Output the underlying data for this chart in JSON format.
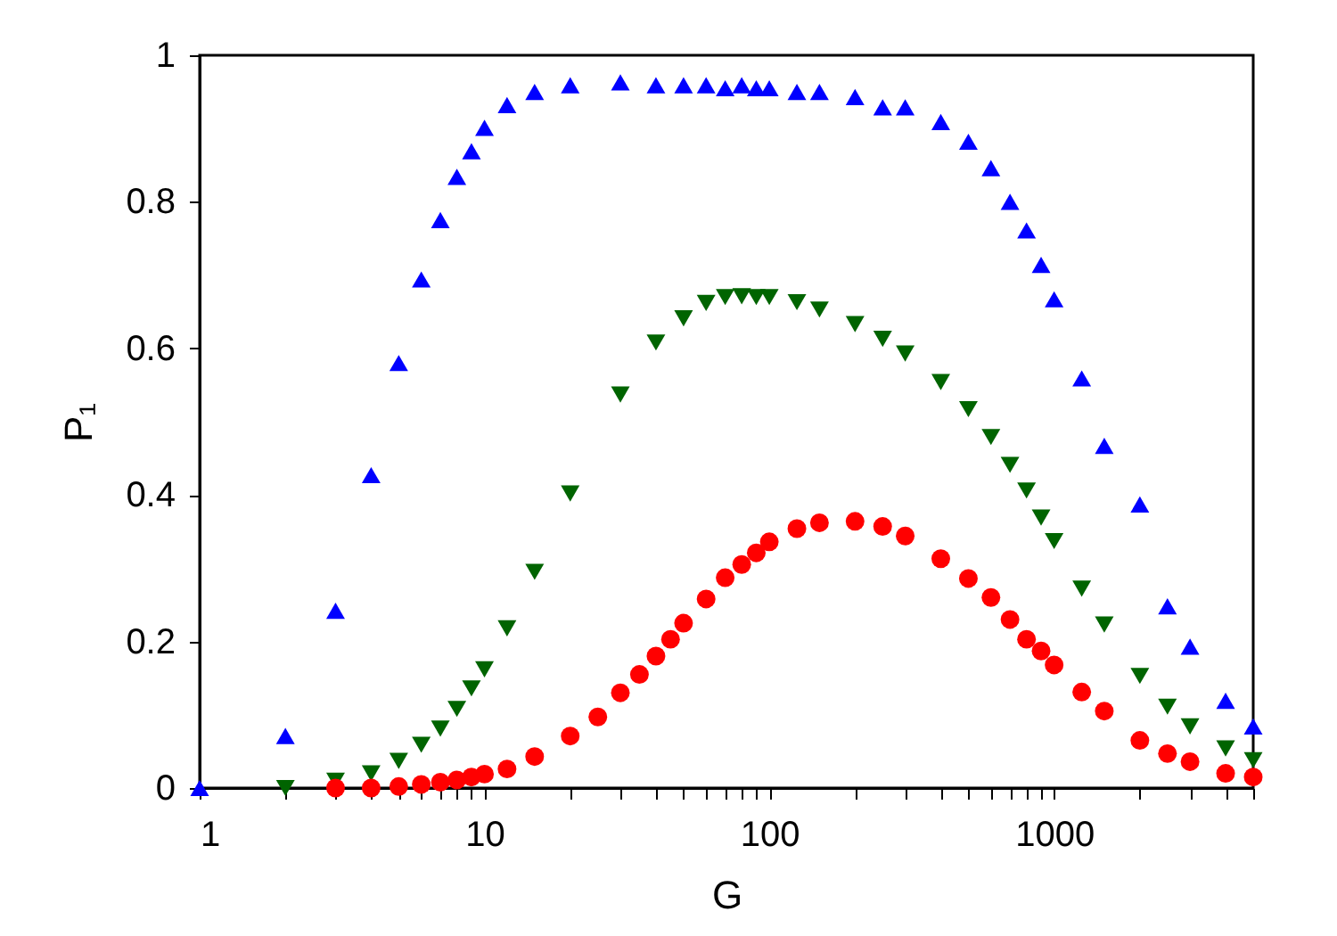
{
  "chart_data": {
    "type": "scatter",
    "xlabel": "G",
    "ylabel": "P₁",
    "log": "x",
    "grid": false,
    "xlim": [
      1,
      5000
    ],
    "ylim": [
      0,
      1
    ],
    "xticks": [
      1,
      {
        "value": 2,
        "label": null
      },
      {
        "value": 3,
        "label": null
      },
      {
        "value": 4,
        "label": null
      },
      {
        "value": 5,
        "label": null
      },
      {
        "value": 6,
        "label": null
      },
      {
        "value": 7,
        "label": null
      },
      {
        "value": 8,
        "label": null
      },
      {
        "value": 9,
        "label": null
      },
      10,
      {
        "value": 20,
        "label": null
      },
      {
        "value": 30,
        "label": null
      },
      {
        "value": 40,
        "label": null
      },
      {
        "value": 50,
        "label": null
      },
      {
        "value": 60,
        "label": null
      },
      {
        "value": 70,
        "label": null
      },
      {
        "value": 80,
        "label": null
      },
      {
        "value": 90,
        "label": null
      },
      100,
      {
        "value": 200,
        "label": null
      },
      {
        "value": 300,
        "label": null
      },
      {
        "value": 400,
        "label": null
      },
      {
        "value": 500,
        "label": null
      },
      {
        "value": 600,
        "label": null
      },
      {
        "value": 700,
        "label": null
      },
      {
        "value": 800,
        "label": null
      },
      {
        "value": 900,
        "label": null
      },
      1000,
      {
        "value": 2000,
        "label": null
      },
      {
        "value": 3000,
        "label": null
      },
      {
        "value": 4000,
        "label": null
      },
      {
        "value": 5000,
        "label": null
      }
    ],
    "yticks": [
      0,
      0.2,
      0.4,
      0.6,
      0.8,
      1
    ],
    "series": [
      {
        "color": "#0000ff",
        "marker": "triangle",
        "x": [
          1,
          2,
          3,
          4,
          5,
          6,
          7,
          8,
          9,
          10,
          12,
          15,
          20,
          30,
          40,
          50,
          60,
          70,
          80,
          90,
          100,
          125,
          150,
          200,
          250,
          300,
          400,
          500,
          600,
          700,
          800,
          900,
          1000,
          1250,
          1500,
          2000,
          2500,
          3000,
          4000,
          5000
        ],
        "values": [
          0.0,
          0.071,
          0.242,
          0.427,
          0.58,
          0.694,
          0.775,
          0.834,
          0.869,
          0.901,
          0.932,
          0.95,
          0.959,
          0.963,
          0.959,
          0.959,
          0.959,
          0.955,
          0.959,
          0.955,
          0.955,
          0.95,
          0.95,
          0.943,
          0.929,
          0.929,
          0.909,
          0.882,
          0.846,
          0.8,
          0.761,
          0.714,
          0.667,
          0.559,
          0.467,
          0.387,
          0.248,
          0.193,
          0.119,
          0.084
        ]
      },
      {
        "color": "#006400",
        "marker": "triangle-down",
        "x": [
          2,
          3,
          4,
          5,
          6,
          7,
          8,
          9,
          10,
          12,
          15,
          20,
          30,
          40,
          50,
          60,
          70,
          80,
          90,
          100,
          125,
          150,
          200,
          250,
          300,
          400,
          500,
          600,
          700,
          800,
          900,
          1000,
          1250,
          1500,
          2000,
          2500,
          3000,
          4000,
          5000
        ],
        "values": [
          0.0,
          0.01,
          0.02,
          0.037,
          0.059,
          0.081,
          0.108,
          0.136,
          0.162,
          0.218,
          0.295,
          0.402,
          0.537,
          0.608,
          0.641,
          0.662,
          0.67,
          0.671,
          0.67,
          0.67,
          0.663,
          0.653,
          0.633,
          0.613,
          0.593,
          0.554,
          0.517,
          0.479,
          0.441,
          0.406,
          0.369,
          0.337,
          0.272,
          0.223,
          0.153,
          0.111,
          0.084,
          0.054,
          0.038
        ]
      },
      {
        "color": "#ff0000",
        "marker": "circle",
        "x": [
          3,
          4,
          5,
          6,
          7,
          8,
          9,
          10,
          12,
          15,
          20,
          25,
          30,
          35,
          40,
          45,
          50,
          60,
          70,
          80,
          90,
          100,
          125,
          150,
          200,
          250,
          300,
          400,
          500,
          600,
          700,
          800,
          900,
          1000,
          1250,
          1500,
          2000,
          2500,
          3000,
          4000,
          5000
        ],
        "values": [
          0.0,
          0.0,
          0.002,
          0.005,
          0.008,
          0.011,
          0.015,
          0.019,
          0.026,
          0.043,
          0.071,
          0.097,
          0.13,
          0.155,
          0.18,
          0.203,
          0.225,
          0.258,
          0.287,
          0.305,
          0.321,
          0.336,
          0.354,
          0.362,
          0.364,
          0.357,
          0.344,
          0.313,
          0.286,
          0.26,
          0.23,
          0.203,
          0.187,
          0.168,
          0.131,
          0.105,
          0.065,
          0.047,
          0.036,
          0.02,
          0.015
        ]
      }
    ]
  }
}
